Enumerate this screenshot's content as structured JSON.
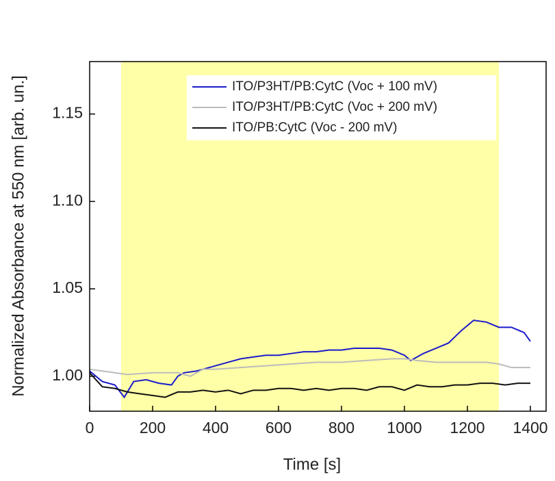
{
  "chart_data": {
    "type": "line",
    "xlabel": "Time [s]",
    "ylabel": "Normalized Absorbance at 550 nm [arb. un.]",
    "xlim": [
      0,
      1450
    ],
    "ylim": [
      0.98,
      1.18
    ],
    "xticks": [
      0,
      200,
      400,
      600,
      800,
      1000,
      1200,
      1400
    ],
    "yticks": [
      {
        "value": 1.0,
        "label": "1.00"
      },
      1.05,
      {
        "value": 1.1,
        "label": "1.10"
      },
      1.15
    ],
    "highlight": {
      "x": [
        100,
        1300
      ],
      "color": "#ffffa8"
    },
    "legend": "upper right",
    "series": [
      {
        "name": "ITO/P3HT/PB:CytC (Voc + 100 mV)",
        "color": "#1a1acc",
        "x": [
          0,
          40,
          80,
          110,
          140,
          180,
          220,
          260,
          280,
          300,
          340,
          360,
          400,
          440,
          480,
          520,
          560,
          600,
          640,
          680,
          720,
          760,
          800,
          840,
          880,
          920,
          960,
          1000,
          1020,
          1060,
          1100,
          1140,
          1180,
          1220,
          1260,
          1300,
          1340,
          1380,
          1400
        ],
        "values": [
          1.003,
          0.997,
          0.995,
          0.988,
          0.997,
          0.998,
          0.996,
          0.995,
          1.0,
          1.002,
          1.003,
          1.004,
          1.006,
          1.008,
          1.01,
          1.011,
          1.012,
          1.012,
          1.013,
          1.014,
          1.014,
          1.015,
          1.015,
          1.016,
          1.016,
          1.016,
          1.015,
          1.012,
          1.009,
          1.013,
          1.016,
          1.019,
          1.026,
          1.032,
          1.031,
          1.028,
          1.028,
          1.025,
          1.02
        ]
      },
      {
        "name": "ITO/P3HT/PB:CytC (Voc + 200 mV)",
        "color": "#bbbbbb",
        "x": [
          0,
          40,
          80,
          120,
          200,
          280,
          320,
          360,
          400,
          480,
          560,
          640,
          720,
          800,
          880,
          960,
          1000,
          1040,
          1100,
          1160,
          1200,
          1260,
          1300,
          1340,
          1400
        ],
        "values": [
          1.004,
          1.003,
          1.002,
          1.001,
          1.002,
          1.002,
          1.0,
          1.004,
          1.004,
          1.005,
          1.006,
          1.007,
          1.008,
          1.008,
          1.009,
          1.01,
          1.01,
          1.009,
          1.008,
          1.008,
          1.008,
          1.008,
          1.007,
          1.005,
          1.005
        ]
      },
      {
        "name": "ITO/PB:CytC (Voc - 200 mV)",
        "color": "#111111",
        "x": [
          0,
          40,
          80,
          120,
          160,
          200,
          240,
          280,
          320,
          360,
          400,
          440,
          480,
          520,
          560,
          600,
          640,
          680,
          720,
          760,
          800,
          840,
          880,
          920,
          960,
          1000,
          1040,
          1080,
          1120,
          1160,
          1200,
          1240,
          1280,
          1320,
          1360,
          1400
        ],
        "values": [
          1.002,
          0.994,
          0.993,
          0.991,
          0.99,
          0.989,
          0.988,
          0.991,
          0.991,
          0.992,
          0.991,
          0.992,
          0.99,
          0.992,
          0.992,
          0.993,
          0.993,
          0.992,
          0.993,
          0.992,
          0.993,
          0.993,
          0.992,
          0.994,
          0.994,
          0.992,
          0.995,
          0.994,
          0.994,
          0.995,
          0.995,
          0.996,
          0.996,
          0.995,
          0.996,
          0.996
        ]
      }
    ]
  }
}
